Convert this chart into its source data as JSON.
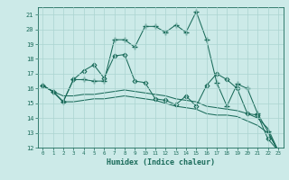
{
  "xlabel": "Humidex (Indice chaleur)",
  "ylabel": "",
  "xlim": [
    -0.5,
    23.5
  ],
  "ylim": [
    12,
    21.5
  ],
  "yticks": [
    12,
    13,
    14,
    15,
    16,
    17,
    18,
    19,
    20,
    21
  ],
  "xticks": [
    0,
    1,
    2,
    3,
    4,
    5,
    6,
    7,
    8,
    9,
    10,
    11,
    12,
    13,
    14,
    15,
    16,
    17,
    18,
    19,
    20,
    21,
    22,
    23
  ],
  "bg_color": "#cceae8",
  "line_color": "#1a6b5a",
  "grid_color": "#aad4d0",
  "lines": [
    {
      "x": [
        0,
        1,
        2,
        3,
        4,
        5,
        6,
        7,
        8,
        9,
        10,
        11,
        12,
        13,
        14,
        15,
        16,
        17,
        18,
        19,
        20,
        21,
        22,
        23
      ],
      "y": [
        16.2,
        15.8,
        15.1,
        16.6,
        16.6,
        16.5,
        16.5,
        19.3,
        19.3,
        18.8,
        20.2,
        20.2,
        19.8,
        20.3,
        19.8,
        21.2,
        19.3,
        16.4,
        14.8,
        16.3,
        16.0,
        14.3,
        13.1,
        11.8
      ],
      "marker": "+"
    },
    {
      "x": [
        0,
        1,
        2,
        3,
        4,
        5,
        6,
        7,
        8,
        9,
        10,
        11,
        12,
        13,
        14,
        15,
        16,
        17,
        18,
        19,
        20,
        21,
        22,
        23
      ],
      "y": [
        16.2,
        15.8,
        15.1,
        16.6,
        17.2,
        17.6,
        16.7,
        18.2,
        18.3,
        16.5,
        16.4,
        15.3,
        15.2,
        14.9,
        15.5,
        14.8,
        16.2,
        17.0,
        16.6,
        16.0,
        14.3,
        14.2,
        12.6,
        11.8
      ],
      "marker": "D"
    },
    {
      "x": [
        0,
        1,
        2,
        3,
        4,
        5,
        6,
        7,
        8,
        9,
        10,
        11,
        12,
        13,
        14,
        15,
        16,
        17,
        18,
        19,
        20,
        21,
        22,
        23
      ],
      "y": [
        16.2,
        15.8,
        15.1,
        15.1,
        15.2,
        15.3,
        15.3,
        15.4,
        15.5,
        15.4,
        15.3,
        15.2,
        15.0,
        14.8,
        14.7,
        14.6,
        14.3,
        14.2,
        14.2,
        14.1,
        13.8,
        13.5,
        13.0,
        11.8
      ],
      "marker": null
    },
    {
      "x": [
        0,
        1,
        2,
        3,
        4,
        5,
        6,
        7,
        8,
        9,
        10,
        11,
        12,
        13,
        14,
        15,
        16,
        17,
        18,
        19,
        20,
        21,
        22,
        23
      ],
      "y": [
        16.2,
        15.8,
        15.5,
        15.5,
        15.6,
        15.6,
        15.7,
        15.8,
        15.9,
        15.8,
        15.7,
        15.6,
        15.5,
        15.3,
        15.2,
        15.1,
        14.8,
        14.7,
        14.6,
        14.5,
        14.3,
        14.0,
        13.3,
        11.8
      ],
      "marker": null
    }
  ]
}
